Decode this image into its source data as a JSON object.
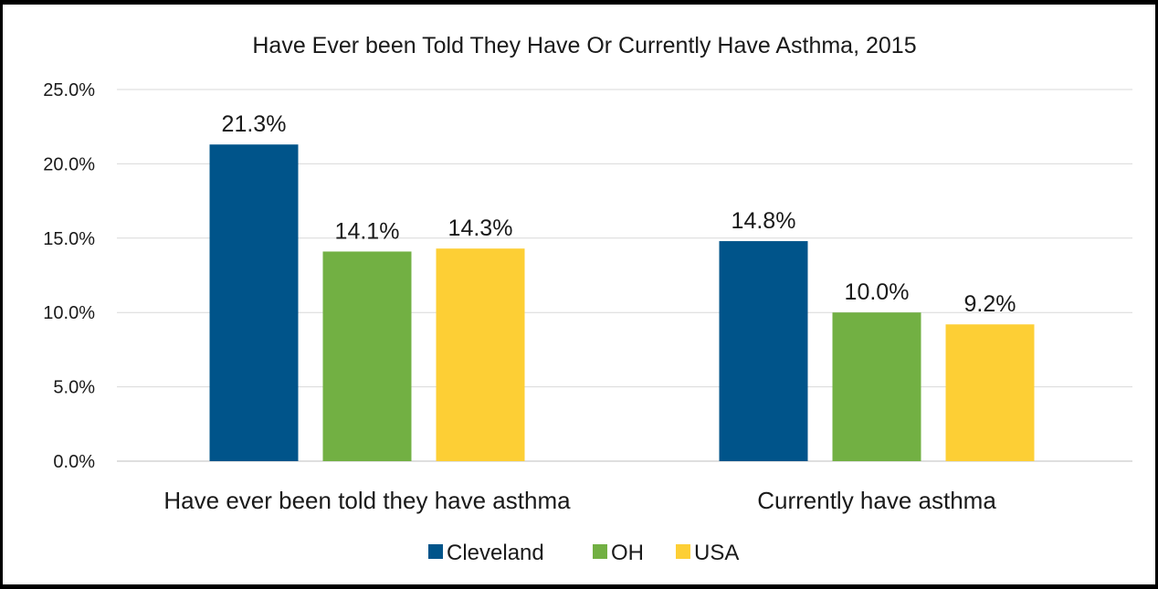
{
  "chart_data": {
    "type": "bar",
    "title": "Have Ever been Told They Have Or Currently Have Asthma, 2015",
    "xlabel": "",
    "ylabel": "",
    "categories": [
      "Have ever been told they have asthma",
      "Currently have asthma"
    ],
    "series": [
      {
        "name": "Cleveland",
        "values": [
          21.3,
          14.8
        ],
        "color": "#00548A"
      },
      {
        "name": "OH",
        "values": [
          14.1,
          10.0
        ],
        "color": "#72B043"
      },
      {
        "name": "USA",
        "values": [
          14.3,
          9.2
        ],
        "color": "#FDCF35"
      }
    ],
    "ylim": [
      0,
      25
    ],
    "yticks": [
      "0.0%",
      "5.0%",
      "10.0%",
      "15.0%",
      "20.0%",
      "25.0%"
    ],
    "data_labels": [
      [
        "21.3%",
        "14.8%"
      ],
      [
        "14.1%",
        "10.0%"
      ],
      [
        "14.3%",
        "9.2%"
      ]
    ],
    "grid": true,
    "legend_position": "bottom"
  }
}
